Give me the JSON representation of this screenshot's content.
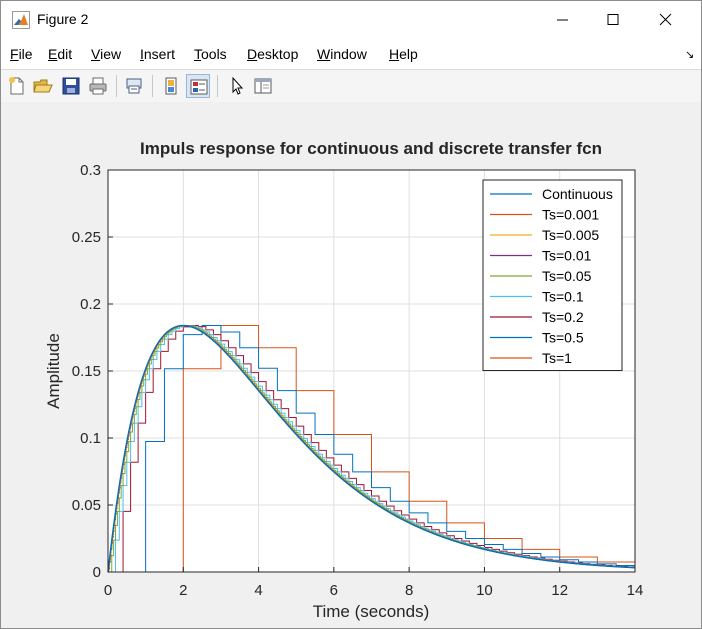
{
  "window": {
    "title": "Figure 2"
  },
  "menu": [
    {
      "label": "File",
      "mnemonic": "F",
      "rest": "ile"
    },
    {
      "label": "Edit",
      "mnemonic": "E",
      "rest": "dit"
    },
    {
      "label": "View",
      "mnemonic": "V",
      "rest": "iew"
    },
    {
      "label": "Insert",
      "mnemonic": "I",
      "rest": "nsert"
    },
    {
      "label": "Tools",
      "mnemonic": "T",
      "rest": "ools"
    },
    {
      "label": "Desktop",
      "mnemonic": "D",
      "rest": "esktop"
    },
    {
      "label": "Window",
      "mnemonic": "W",
      "rest": "indow"
    },
    {
      "label": "Help",
      "mnemonic": "H",
      "rest": "elp"
    }
  ],
  "toolbar": {
    "buttons": [
      "new-figure-icon",
      "open-file-icon",
      "save-icon",
      "print-icon",
      "link-plot-icon",
      "hide-plot-tools-icon",
      "show-plot-tools-icon",
      "edit-plot-icon",
      "property-inspector-icon"
    ]
  },
  "colors": {
    "window_bg": "#f0f0f0",
    "axes_bg": "#ffffff",
    "grid": "#dfdfdf",
    "text": "#262626"
  },
  "chart_data": {
    "type": "line",
    "title": "Impuls response for continuous and discrete transfer fcn",
    "xlabel": "Time (seconds)",
    "ylabel": "Amplitude",
    "xlim": [
      0,
      14
    ],
    "ylim": [
      0,
      0.3
    ],
    "xticks": [
      0,
      2,
      4,
      6,
      8,
      10,
      12,
      14
    ],
    "yticks": [
      0,
      0.05,
      0.1,
      0.15,
      0.2,
      0.25,
      0.3
    ],
    "xtick_labels": [
      "0",
      "2",
      "4",
      "6",
      "8",
      "10",
      "12",
      "14"
    ],
    "ytick_labels": [
      "0",
      "0.05",
      "0.1",
      "0.15",
      "0.2",
      "0.25",
      "0.3"
    ],
    "grid": true,
    "legend_position": "top-right",
    "continuous_response": "t*exp(-t/2)/4",
    "series": [
      {
        "name": "Continuous",
        "kind": "continuous",
        "color": "#0072bd"
      },
      {
        "name": "Ts=0.001",
        "kind": "step",
        "ts": 0.001,
        "color": "#d95319"
      },
      {
        "name": "Ts=0.005",
        "kind": "step",
        "ts": 0.005,
        "color": "#edb120"
      },
      {
        "name": "Ts=0.01",
        "kind": "step",
        "ts": 0.01,
        "color": "#7e2f8e"
      },
      {
        "name": "Ts=0.05",
        "kind": "step",
        "ts": 0.05,
        "color": "#77ac30"
      },
      {
        "name": "Ts=0.1",
        "kind": "step",
        "ts": 0.1,
        "color": "#4dbeee"
      },
      {
        "name": "Ts=0.2",
        "kind": "step",
        "ts": 0.2,
        "color": "#a2142f"
      },
      {
        "name": "Ts=0.5",
        "kind": "step",
        "ts": 0.5,
        "color": "#0072bd"
      },
      {
        "name": "Ts=1",
        "kind": "step",
        "ts": 1,
        "color": "#d95319"
      }
    ]
  }
}
